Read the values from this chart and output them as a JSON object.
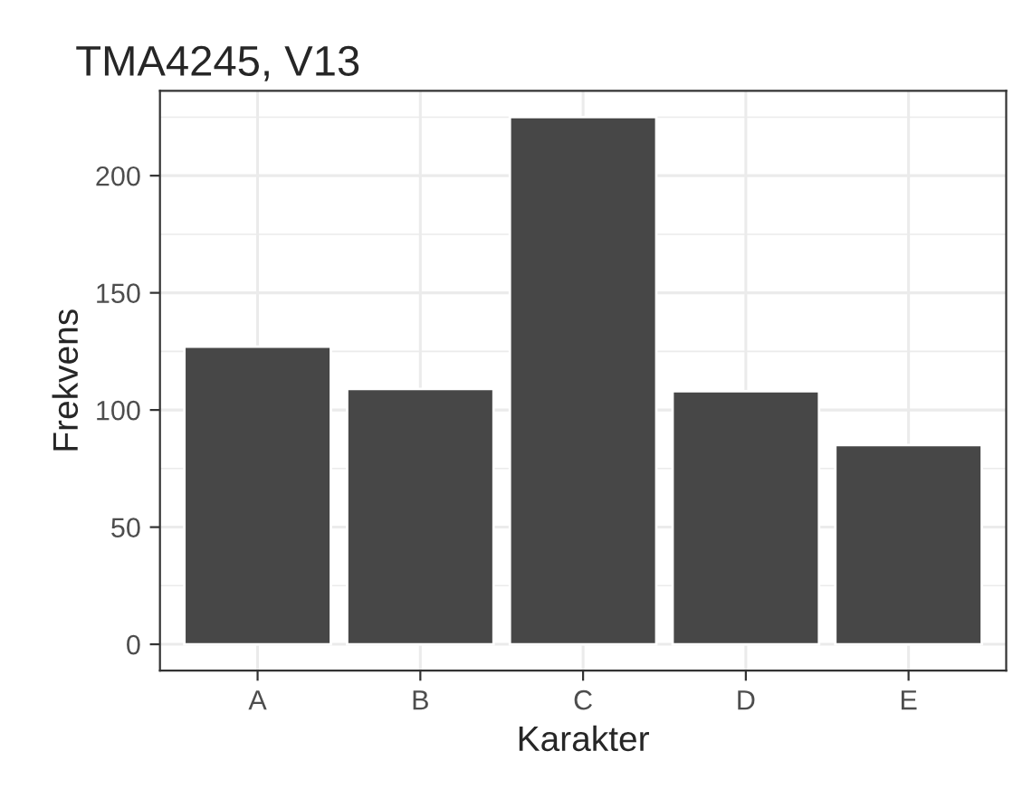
{
  "chart_data": {
    "type": "bar",
    "title": "TMA4245, V13",
    "xlabel": "Karakter",
    "ylabel": "Frekvens",
    "categories": [
      "A",
      "B",
      "C",
      "D",
      "E"
    ],
    "values": [
      127,
      109,
      225,
      108,
      85
    ],
    "color": "#474747",
    "ylim": [
      -11.25,
      236.25
    ],
    "yticks": [
      0,
      50,
      100,
      150,
      200
    ],
    "grid": true
  }
}
